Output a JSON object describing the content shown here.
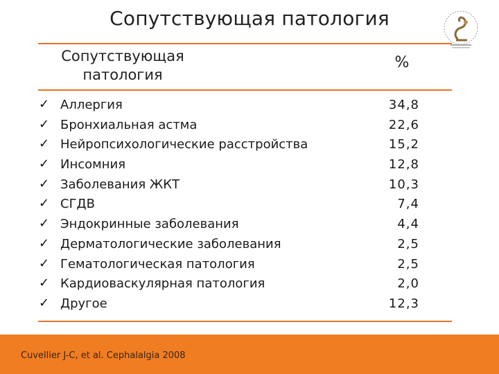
{
  "title": "Сопутствующая патология",
  "table": {
    "header_name_line1": "Сопутствующая",
    "header_name_line2": "патология",
    "header_value": "%",
    "rows": [
      {
        "name": "Аллергия",
        "value": "34,8"
      },
      {
        "name": "Бронхиальная астма",
        "value": "22,6"
      },
      {
        "name": "Нейропсихологические расстройства",
        "value": "15,2"
      },
      {
        "name": "Инсомния",
        "value": "12,8"
      },
      {
        "name": "Заболевания ЖКТ",
        "value": "10,3"
      },
      {
        "name": "СГДВ",
        "value": "7,4"
      },
      {
        "name": "Эндокринные заболевания",
        "value": "4,4"
      },
      {
        "name": "Дерматологические заболевания",
        "value": "2,5"
      },
      {
        "name": "Гематологическая патология",
        "value": "2,5"
      },
      {
        "name": "Кардиоваскулярная патология",
        "value": "2,0"
      },
      {
        "name": "Другое",
        "value": "12,3"
      }
    ]
  },
  "footer": {
    "citation": "Cuvellier J-C, et al. Cephalalgia 2008"
  },
  "colors": {
    "accent": "#f07d22",
    "rule": "#e8722a"
  },
  "icons": {
    "bullet": "checkmark-icon",
    "logo": "medical-society-logo"
  }
}
